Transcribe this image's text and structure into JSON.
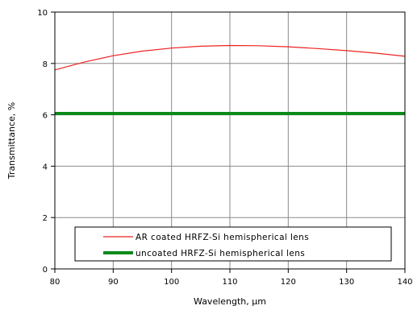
{
  "chart_data": {
    "type": "line",
    "title": "",
    "xlabel": "Wavelength, µm",
    "ylabel": "Transmittance, %",
    "xlim": [
      80,
      140
    ],
    "ylim": [
      0,
      10
    ],
    "xticks": [
      80,
      90,
      100,
      110,
      120,
      130,
      140
    ],
    "yticks": [
      0,
      2,
      4,
      6,
      8,
      10
    ],
    "grid": true,
    "legend_position": "bottom",
    "series": [
      {
        "name": "AR coated HRFZ-Si hemispherical lens",
        "color": "#ee2222",
        "x": [
          80,
          85,
          90,
          95,
          100,
          105,
          110,
          115,
          120,
          125,
          130,
          135,
          140
        ],
        "y": [
          7.75,
          8.05,
          8.3,
          8.48,
          8.6,
          8.67,
          8.7,
          8.69,
          8.65,
          8.58,
          8.5,
          8.4,
          8.28
        ]
      },
      {
        "name": "uncoated HRFZ-Si hemispherical lens",
        "color": "#0a8a1a",
        "x": [
          80,
          140
        ],
        "y": [
          6.05,
          6.05
        ]
      }
    ]
  }
}
